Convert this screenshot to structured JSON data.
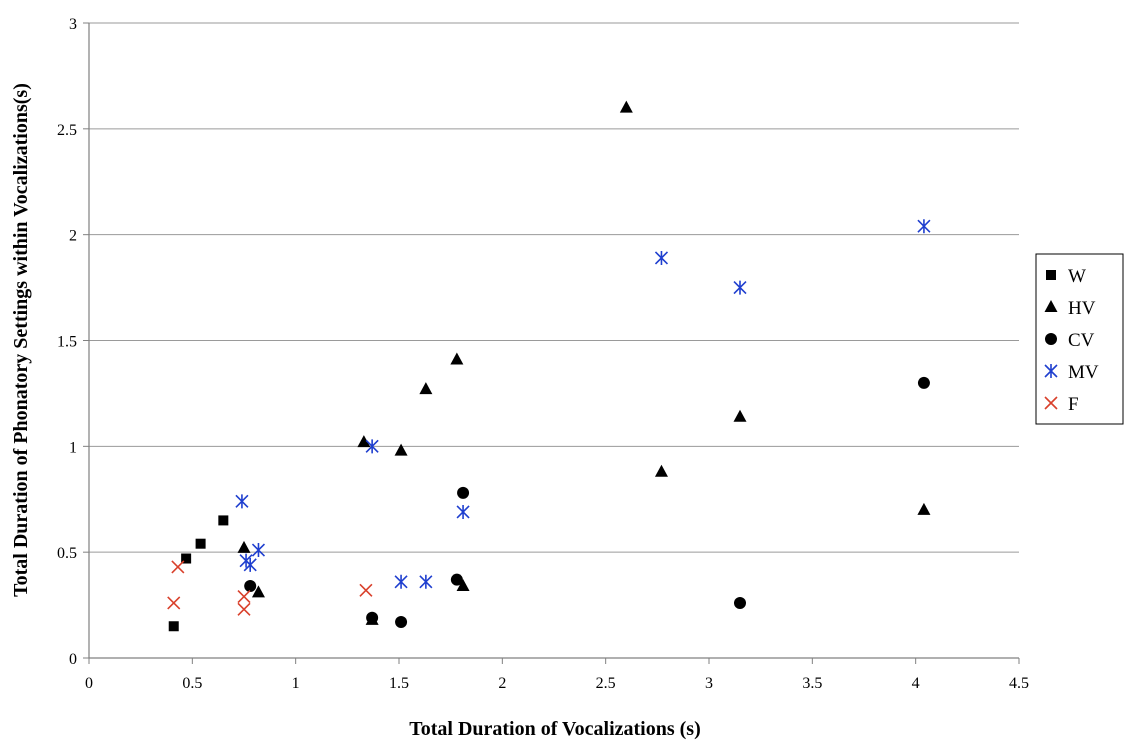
{
  "chart_data": {
    "type": "scatter",
    "title": "",
    "xlabel": "Total Duration of Vocalizations (s)",
    "ylabel": "Total Duration of Phonatory Settings within Vocalizations(s)",
    "xlim": [
      0,
      4.5
    ],
    "ylim": [
      0,
      3
    ],
    "xticks": [
      "0",
      "0.5",
      "1",
      "1.5",
      "2",
      "2.5",
      "3",
      "3.5",
      "4",
      "4.5"
    ],
    "yticks": [
      "0",
      "0.5",
      "1",
      "1.5",
      "2",
      "2.5",
      "3"
    ],
    "grid": "horizontal",
    "legend_position": "right",
    "series": [
      {
        "name": "W",
        "marker": "square",
        "color": "#000000",
        "points": [
          [
            0.41,
            0.15
          ],
          [
            0.47,
            0.47
          ],
          [
            0.54,
            0.54
          ],
          [
            0.65,
            0.65
          ]
        ]
      },
      {
        "name": "HV",
        "marker": "triangle",
        "color": "#000000",
        "points": [
          [
            0.75,
            0.52
          ],
          [
            0.82,
            0.31
          ],
          [
            1.33,
            1.02
          ],
          [
            1.37,
            0.18
          ],
          [
            1.51,
            0.98
          ],
          [
            1.63,
            1.27
          ],
          [
            1.78,
            1.41
          ],
          [
            1.81,
            0.34
          ],
          [
            2.6,
            2.6
          ],
          [
            2.77,
            0.88
          ],
          [
            3.15,
            1.14
          ],
          [
            4.04,
            0.7
          ]
        ]
      },
      {
        "name": "CV",
        "marker": "circle",
        "color": "#000000",
        "points": [
          [
            0.78,
            0.34
          ],
          [
            1.37,
            0.19
          ],
          [
            1.51,
            0.17
          ],
          [
            1.78,
            0.37
          ],
          [
            1.81,
            0.78
          ],
          [
            3.15,
            0.26
          ],
          [
            4.04,
            1.3
          ]
        ]
      },
      {
        "name": "MV",
        "marker": "asterisk",
        "color": "#1f3fcf",
        "points": [
          [
            0.74,
            0.74
          ],
          [
            0.76,
            0.46
          ],
          [
            0.78,
            0.44
          ],
          [
            0.82,
            0.51
          ],
          [
            1.37,
            1.0
          ],
          [
            1.51,
            0.36
          ],
          [
            1.63,
            0.36
          ],
          [
            1.81,
            0.69
          ],
          [
            2.77,
            1.89
          ],
          [
            3.15,
            1.75
          ],
          [
            4.04,
            2.04
          ]
        ]
      },
      {
        "name": "F",
        "marker": "x",
        "color": "#d9402b",
        "points": [
          [
            0.41,
            0.26
          ],
          [
            0.43,
            0.43
          ],
          [
            0.75,
            0.23
          ],
          [
            0.75,
            0.29
          ],
          [
            1.34,
            0.32
          ]
        ]
      }
    ]
  }
}
